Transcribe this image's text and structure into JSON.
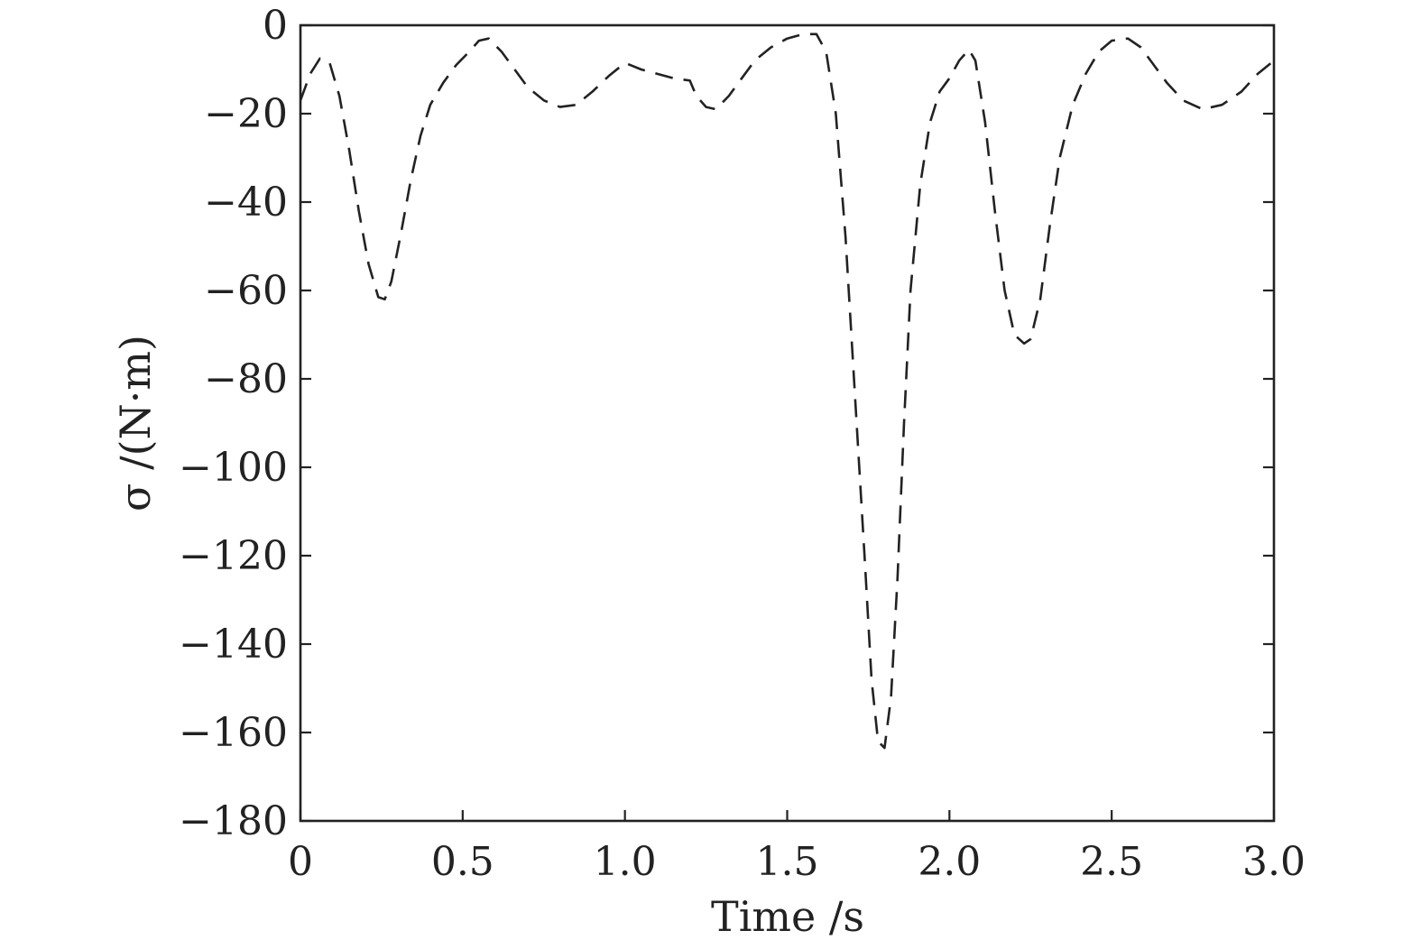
{
  "chart_data": {
    "type": "line",
    "xlabel": "Time /s",
    "ylabel": "σ /(N·m)",
    "xlim": [
      0,
      3.0
    ],
    "ylim": [
      -180,
      0
    ],
    "grid": false,
    "x_ticks": [
      {
        "value": 0,
        "label": "0"
      },
      {
        "value": 0.5,
        "label": "0.5"
      },
      {
        "value": 1.0,
        "label": "1.0"
      },
      {
        "value": 1.5,
        "label": "1.5"
      },
      {
        "value": 2.0,
        "label": "2.0"
      },
      {
        "value": 2.5,
        "label": "2.5"
      },
      {
        "value": 3.0,
        "label": "3.0"
      }
    ],
    "y_ticks": [
      {
        "value": 0,
        "label": "0"
      },
      {
        "value": -20,
        "label": "−20"
      },
      {
        "value": -40,
        "label": "−40"
      },
      {
        "value": -60,
        "label": "−60"
      },
      {
        "value": -80,
        "label": "−80"
      },
      {
        "value": -100,
        "label": "−100"
      },
      {
        "value": -120,
        "label": "−120"
      },
      {
        "value": -140,
        "label": "−140"
      },
      {
        "value": -160,
        "label": "−160"
      },
      {
        "value": -180,
        "label": "−180"
      }
    ],
    "series": [
      {
        "style": "dashed",
        "color": "#222222",
        "x": [
          0.0,
          0.03,
          0.06,
          0.09,
          0.12,
          0.15,
          0.18,
          0.21,
          0.24,
          0.26,
          0.28,
          0.31,
          0.34,
          0.37,
          0.4,
          0.44,
          0.48,
          0.52,
          0.55,
          0.58,
          0.62,
          0.66,
          0.7,
          0.75,
          0.8,
          0.85,
          0.9,
          0.95,
          1.0,
          1.05,
          1.1,
          1.15,
          1.2,
          1.22,
          1.25,
          1.28,
          1.32,
          1.36,
          1.4,
          1.45,
          1.5,
          1.55,
          1.59,
          1.62,
          1.65,
          1.68,
          1.71,
          1.74,
          1.76,
          1.78,
          1.8,
          1.82,
          1.84,
          1.86,
          1.88,
          1.91,
          1.94,
          1.97,
          2.0,
          2.03,
          2.06,
          2.08,
          2.11,
          2.14,
          2.17,
          2.2,
          2.23,
          2.25,
          2.28,
          2.31,
          2.34,
          2.38,
          2.42,
          2.46,
          2.5,
          2.55,
          2.59,
          2.63,
          2.67,
          2.72,
          2.78,
          2.84,
          2.9,
          2.95,
          3.0
        ],
        "y": [
          -17,
          -11,
          -7.5,
          -8.5,
          -16,
          -28,
          -42,
          -54,
          -61.5,
          -62,
          -58,
          -47,
          -35,
          -25,
          -18,
          -13,
          -9,
          -6,
          -3.5,
          -3,
          -6,
          -10,
          -14,
          -17,
          -18.5,
          -18,
          -15,
          -11.5,
          -8.5,
          -10,
          -11,
          -12,
          -12.5,
          -16,
          -18.5,
          -19,
          -16,
          -12,
          -8,
          -5,
          -3,
          -2,
          -2,
          -6,
          -20,
          -48,
          -85,
          -122,
          -148,
          -162,
          -163.5,
          -152,
          -125,
          -90,
          -60,
          -36,
          -22,
          -15,
          -12,
          -8,
          -5.5,
          -8,
          -22,
          -42,
          -60,
          -70,
          -72,
          -71,
          -62,
          -45,
          -30,
          -18,
          -11,
          -6,
          -3.5,
          -3,
          -5,
          -9,
          -13,
          -17,
          -19,
          -18,
          -15,
          -11,
          -8
        ]
      }
    ]
  }
}
